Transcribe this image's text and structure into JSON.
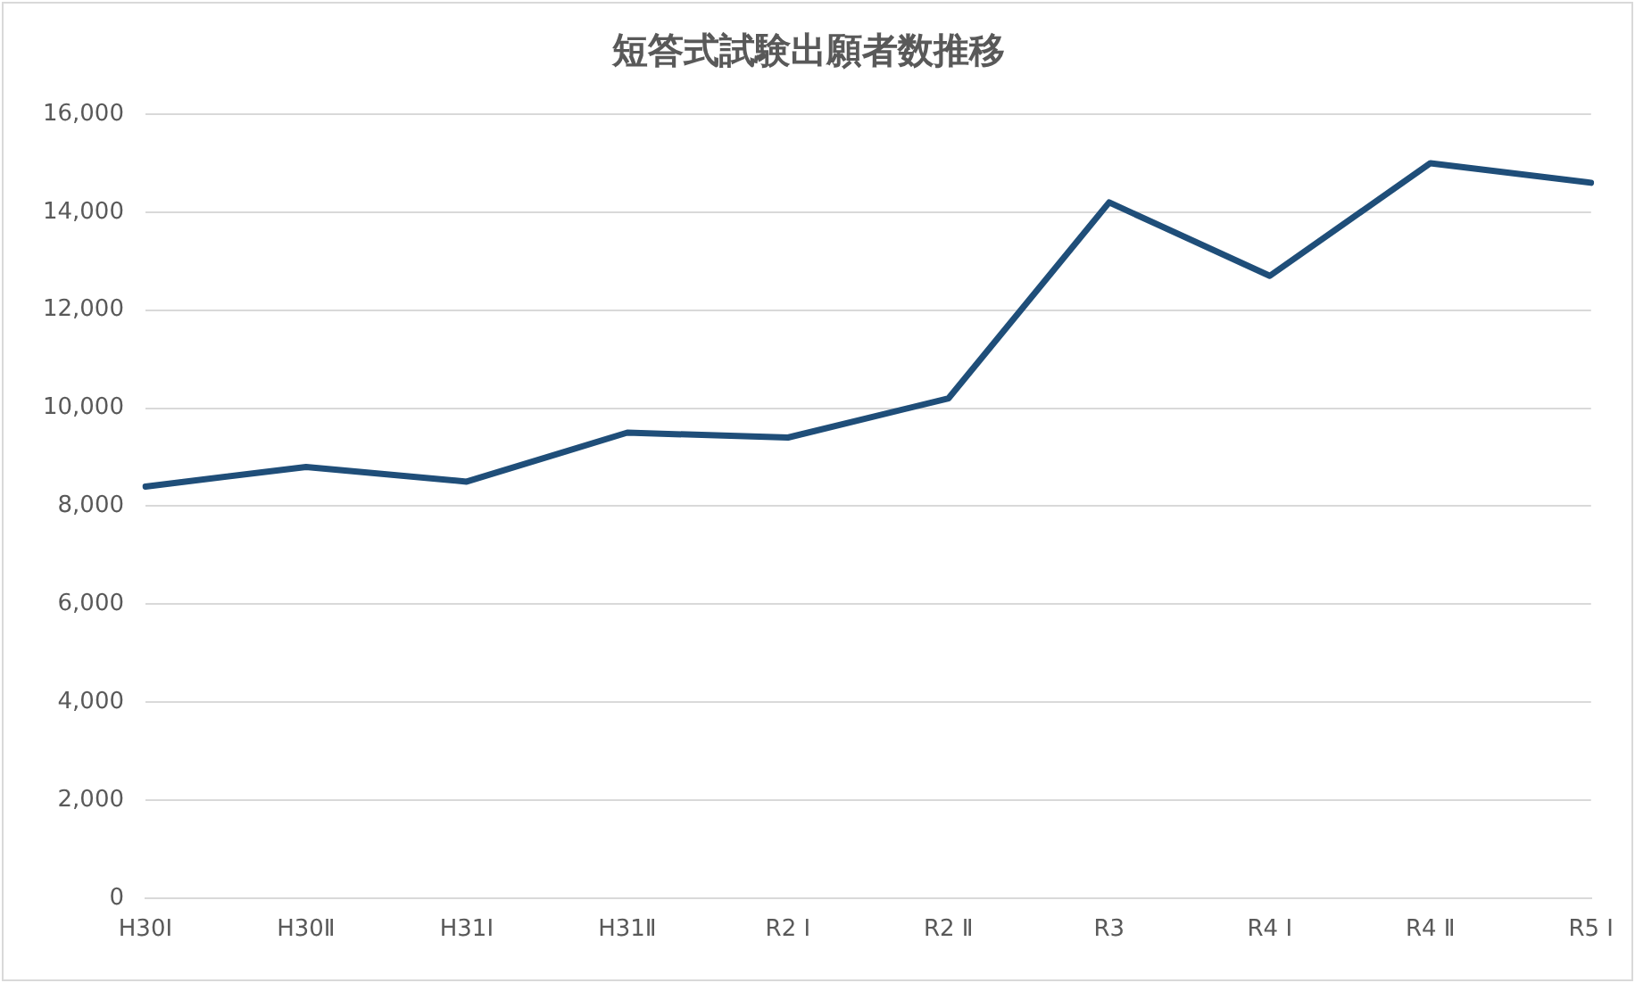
{
  "chart_data": {
    "type": "line",
    "title": "短答式試験出願者数推移",
    "categories": [
      "H30Ⅰ",
      "H30Ⅱ",
      "H31Ⅰ",
      "H31Ⅱ",
      "R2 Ⅰ",
      "R2 Ⅱ",
      "R3",
      "R4 Ⅰ",
      "R4 Ⅱ",
      "R5 Ⅰ"
    ],
    "series": [
      {
        "color": "#1f4e79",
        "values": [
          8400,
          8800,
          8500,
          9500,
          9400,
          10200,
          14200,
          12700,
          15000,
          14600
        ]
      }
    ],
    "ylim": [
      0,
      16000
    ],
    "yticks": [
      {
        "value": 0,
        "label": "0"
      },
      {
        "value": 2000,
        "label": "2,000"
      },
      {
        "value": 4000,
        "label": "4,000"
      },
      {
        "value": 6000,
        "label": "6,000"
      },
      {
        "value": 8000,
        "label": "8,000"
      },
      {
        "value": 10000,
        "label": "10,000"
      },
      {
        "value": 12000,
        "label": "12,000"
      },
      {
        "value": 14000,
        "label": "14,000"
      },
      {
        "value": 16000,
        "label": "16,000"
      }
    ],
    "grid": "y",
    "legend": false,
    "marker": "none",
    "line_style": "solid"
  }
}
